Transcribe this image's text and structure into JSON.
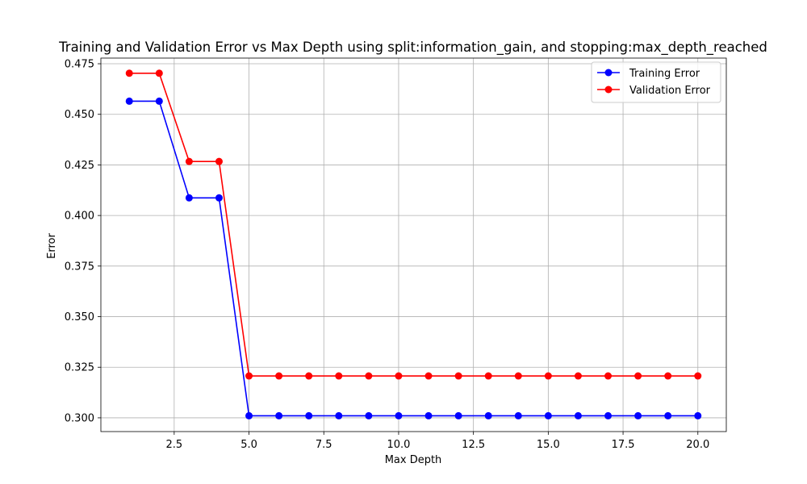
{
  "chart_data": {
    "type": "line",
    "title": "Training and Validation Error vs Max Depth using split:information_gain, and stopping:max_depth_reached",
    "xlabel": "Max Depth",
    "ylabel": "Error",
    "xlim": [
      0.05,
      20.95
    ],
    "ylim": [
      0.2932,
      0.4778
    ],
    "x": [
      1,
      2,
      3,
      4,
      5,
      6,
      7,
      8,
      9,
      10,
      11,
      12,
      13,
      14,
      15,
      16,
      17,
      18,
      19,
      20
    ],
    "xticks": [
      2.5,
      5.0,
      7.5,
      10.0,
      12.5,
      15.0,
      17.5,
      20.0
    ],
    "xtick_labels": [
      "2.5",
      "5.0",
      "7.5",
      "10.0",
      "12.5",
      "15.0",
      "17.5",
      "20.0"
    ],
    "yticks": [
      0.3,
      0.325,
      0.35,
      0.375,
      0.4,
      0.425,
      0.45,
      0.475
    ],
    "ytick_labels": [
      "0.300",
      "0.325",
      "0.350",
      "0.375",
      "0.400",
      "0.425",
      "0.450",
      "0.475"
    ],
    "grid": true,
    "legend_position": "top-right",
    "series": [
      {
        "name": "Training Error",
        "color": "#0000ff",
        "marker": "circle",
        "values": [
          0.4565,
          0.4565,
          0.4087,
          0.4087,
          0.301,
          0.301,
          0.301,
          0.301,
          0.301,
          0.301,
          0.301,
          0.301,
          0.301,
          0.301,
          0.301,
          0.301,
          0.301,
          0.301,
          0.301,
          0.301
        ]
      },
      {
        "name": "Validation Error",
        "color": "#ff0000",
        "marker": "circle",
        "values": [
          0.4703,
          0.4703,
          0.4267,
          0.4267,
          0.3207,
          0.3207,
          0.3207,
          0.3207,
          0.3207,
          0.3207,
          0.3207,
          0.3207,
          0.3207,
          0.3207,
          0.3207,
          0.3207,
          0.3207,
          0.3207,
          0.3207,
          0.3207
        ]
      }
    ]
  }
}
